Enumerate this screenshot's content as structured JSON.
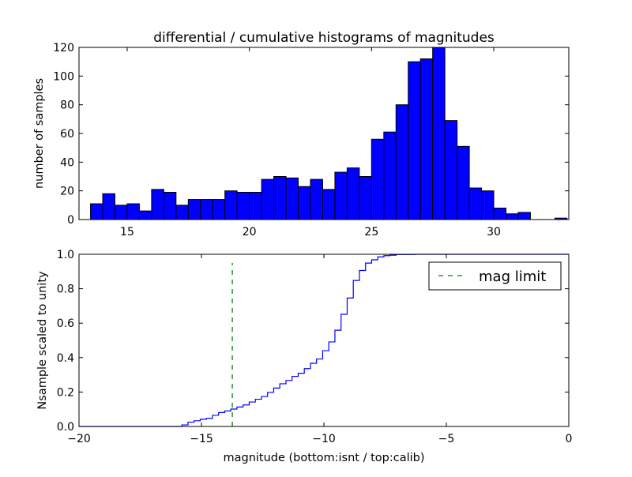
{
  "chart_data": [
    {
      "type": "bar",
      "title": "differential / cumulative histograms of magnitudes",
      "xlabel": "",
      "ylabel": "number of samples",
      "xlim": [
        13.03,
        33.07
      ],
      "ylim": [
        0,
        120
      ],
      "xticks": [
        15,
        20,
        25,
        30
      ],
      "yticks": [
        0,
        20,
        40,
        60,
        80,
        100,
        120
      ],
      "bin_start": 13.5,
      "bin_width": 0.5,
      "values": [
        11,
        18,
        10,
        11,
        6,
        21,
        19,
        10,
        14,
        14,
        14,
        20,
        19,
        19,
        28,
        30,
        29,
        23,
        28,
        21,
        33,
        36,
        30,
        56,
        61,
        80,
        110,
        112,
        120,
        69,
        51,
        22,
        20,
        8,
        4,
        5,
        0,
        0,
        1
      ],
      "color": "#0000ff"
    },
    {
      "type": "line",
      "xlabel": "magnitude (bottom:isnt / top:calib)",
      "ylabel": "Nsample scaled to unity",
      "xlim": [
        -20,
        0
      ],
      "ylim": [
        0,
        1
      ],
      "xticks": [
        -20,
        -15,
        -10,
        -5,
        0
      ],
      "xtick_labels": [
        "−20",
        "−15",
        "−10",
        "−5",
        "0"
      ],
      "yticks": [
        0,
        0.2,
        0.4,
        0.6,
        0.8,
        1.0
      ],
      "ytick_labels": [
        "0.0",
        "0.2",
        "0.4",
        "0.6",
        "0.8",
        "1.0"
      ],
      "step_start": -15.8,
      "step_width": 0.25,
      "cumulative": [
        0.009,
        0.025,
        0.033,
        0.042,
        0.047,
        0.065,
        0.081,
        0.09,
        0.101,
        0.113,
        0.125,
        0.142,
        0.158,
        0.174,
        0.198,
        0.223,
        0.248,
        0.267,
        0.291,
        0.309,
        0.336,
        0.367,
        0.392,
        0.44,
        0.491,
        0.559,
        0.652,
        0.746,
        0.848,
        0.906,
        0.949,
        0.968,
        0.985,
        0.992,
        0.995,
        0.999,
        0.999,
        0.999,
        1.0
      ],
      "line_color": "#0000ff",
      "mag_limit": {
        "x": -13.74,
        "ymax": 0.95,
        "color": "#008000",
        "label": "mag limit"
      },
      "legend": "top-right"
    }
  ]
}
